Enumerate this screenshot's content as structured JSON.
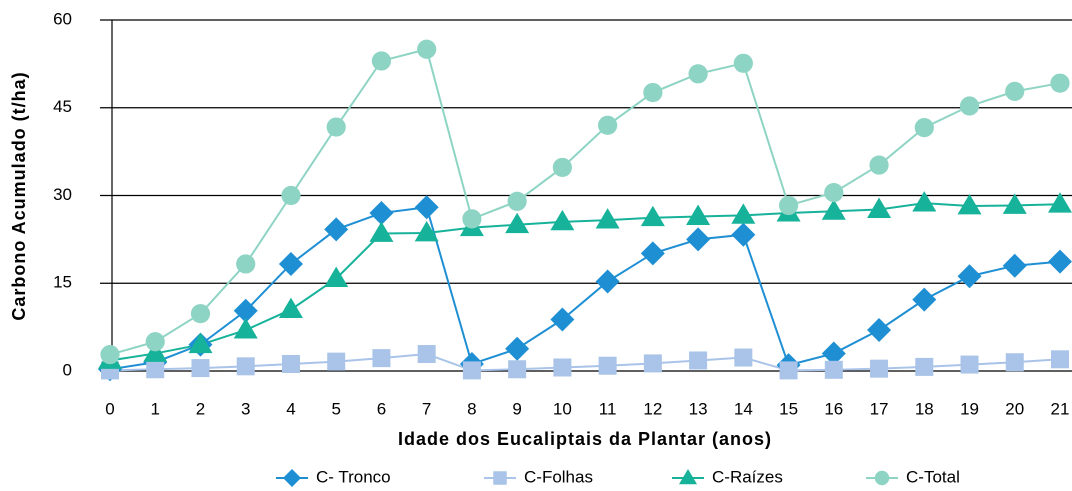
{
  "chart_data": {
    "type": "line",
    "x_label": "Idade dos Eucaliptais da Plantar (anos)",
    "y_label": "Carbono Acumulado  (t/ha)",
    "x": [
      0,
      1,
      2,
      3,
      4,
      5,
      6,
      7,
      8,
      9,
      10,
      11,
      12,
      13,
      14,
      15,
      16,
      17,
      18,
      19,
      20,
      21
    ],
    "xlim": [
      0,
      21
    ],
    "xticks": [
      0,
      1,
      2,
      3,
      4,
      5,
      6,
      7,
      8,
      9,
      10,
      11,
      12,
      13,
      14,
      15,
      16,
      17,
      18,
      19,
      20,
      21
    ],
    "ylim": [
      0,
      60
    ],
    "yticks": [
      0,
      15,
      30,
      45,
      60
    ],
    "grid": true,
    "legend": "bottom",
    "series": [
      {
        "name": "C- Tronco",
        "color": "#1f8fd4",
        "marker": "diamond",
        "values": [
          0.3,
          1.5,
          4.5,
          10.3,
          18.3,
          24.2,
          27,
          28,
          1.2,
          3.8,
          8.8,
          15.3,
          20.1,
          22.5,
          23.3,
          1,
          3,
          7,
          12.2,
          16.2,
          18,
          18.7
        ]
      },
      {
        "name": "C-Folhas",
        "color": "#a9c4e8",
        "marker": "square",
        "values": [
          0.1,
          0.3,
          0.5,
          0.8,
          1.2,
          1.6,
          2.2,
          2.9,
          0.1,
          0.3,
          0.6,
          0.9,
          1.3,
          1.8,
          2.3,
          0.1,
          0.2,
          0.4,
          0.7,
          1.1,
          1.5,
          2
        ]
      },
      {
        "name": "C-Raízes",
        "color": "#17b29a",
        "marker": "triangle",
        "values": [
          1.8,
          3,
          4.5,
          7,
          10.5,
          15.8,
          23.5,
          23.6,
          24.5,
          25,
          25.5,
          25.8,
          26.2,
          26.4,
          26.6,
          27,
          27.3,
          27.6,
          28.7,
          28.2,
          28.3,
          28.5
        ]
      },
      {
        "name": "C-Total",
        "color": "#8ed4c4",
        "marker": "circle",
        "values": [
          2.8,
          5,
          9.8,
          18.3,
          30,
          41.7,
          53,
          55,
          26,
          29,
          34.8,
          42,
          47.6,
          50.8,
          52.6,
          28.3,
          30.5,
          35.2,
          41.6,
          45.3,
          47.8,
          49.2
        ]
      }
    ]
  }
}
